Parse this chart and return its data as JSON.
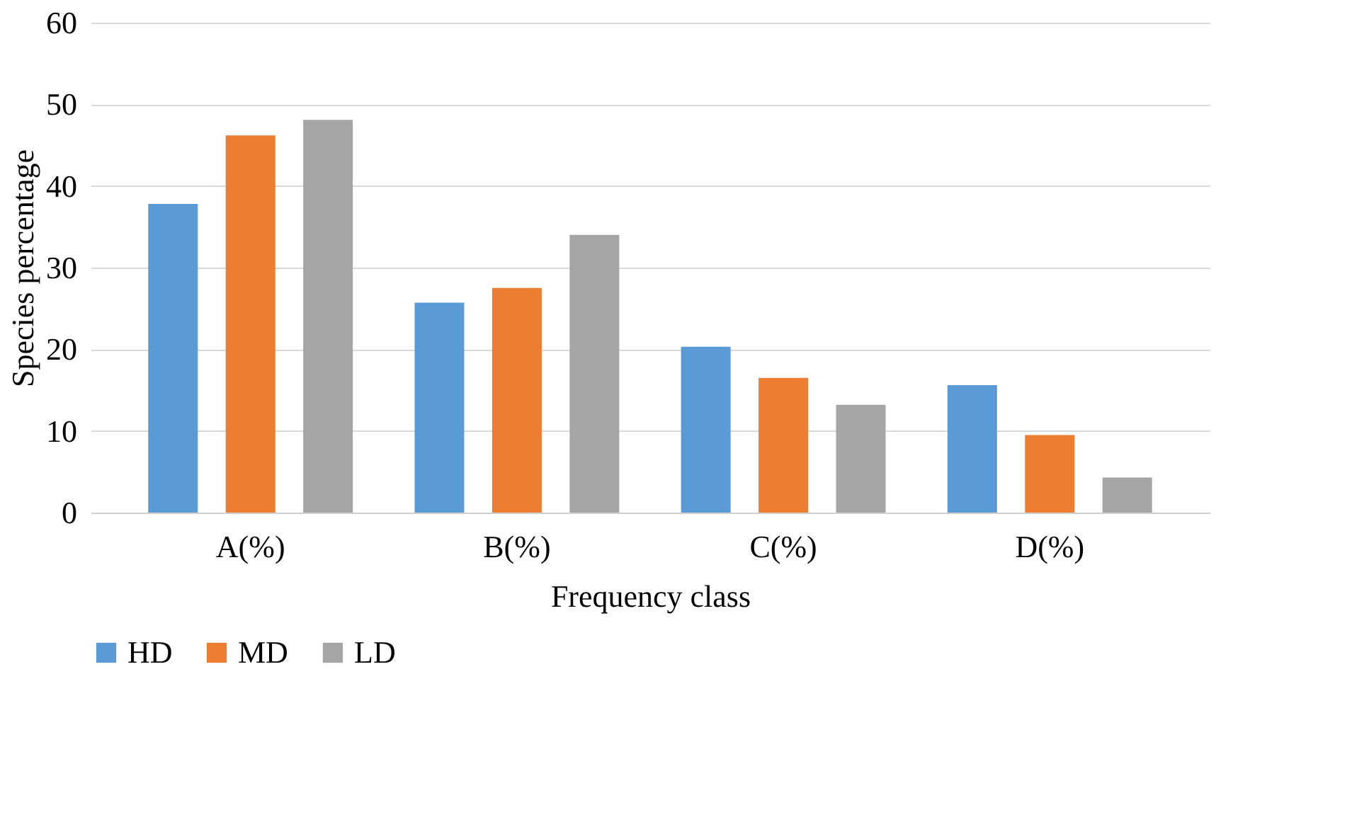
{
  "chart_data": {
    "type": "bar",
    "xlabel": "Frequency class",
    "ylabel": "Species percentage",
    "categories": [
      "A(%)",
      "B(%)",
      "C(%)",
      "D(%)"
    ],
    "series": [
      {
        "name": "HD",
        "color": "#5b9bd5",
        "values": [
          37.8,
          25.7,
          20.3,
          15.6
        ]
      },
      {
        "name": "MD",
        "color": "#ed7d31",
        "values": [
          46.2,
          27.5,
          16.5,
          9.5
        ]
      },
      {
        "name": "LD",
        "color": "#a5a5a5",
        "values": [
          48.1,
          34.0,
          13.2,
          4.3
        ]
      }
    ],
    "ylim": [
      0,
      60
    ],
    "yticks": [
      0,
      10,
      20,
      30,
      40,
      50,
      60
    ],
    "grid": "y",
    "legend": "bottom"
  }
}
